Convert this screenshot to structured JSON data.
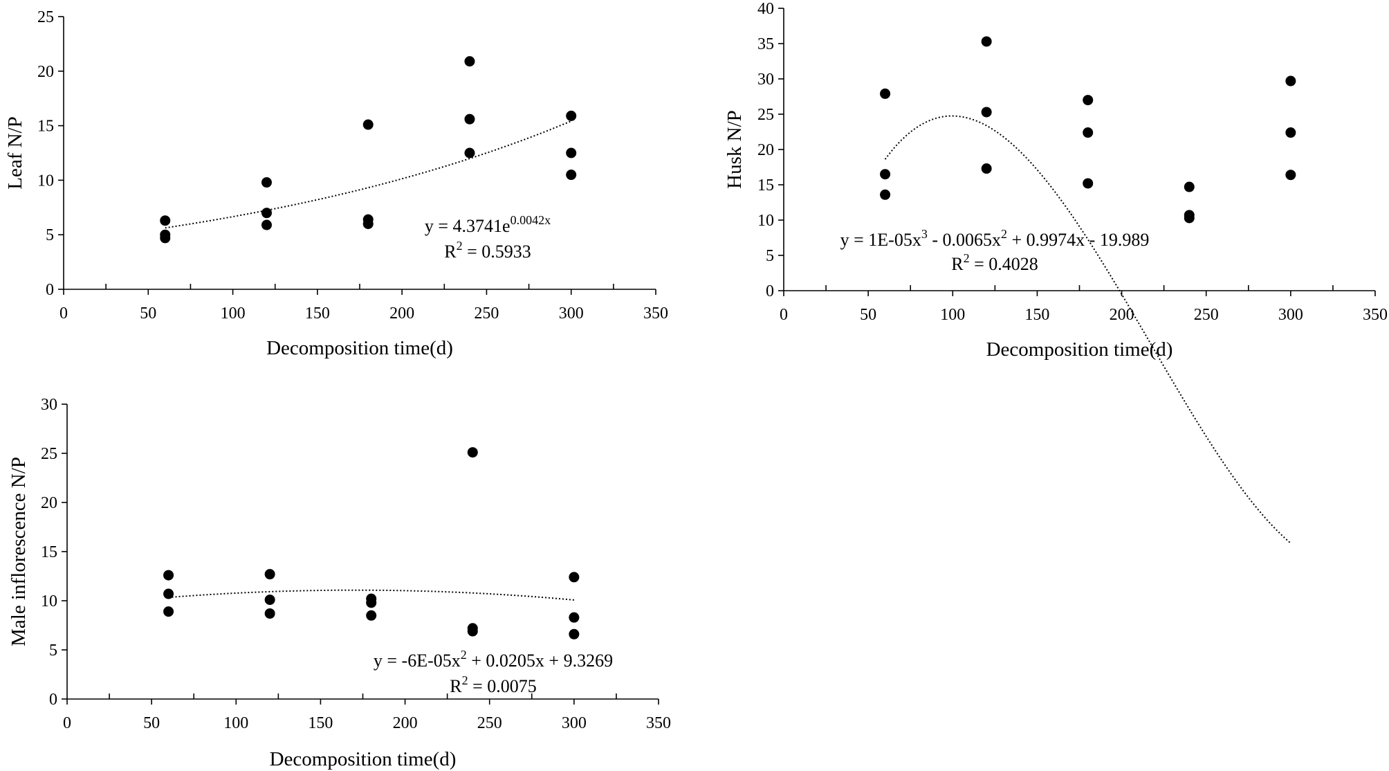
{
  "chart_data": [
    {
      "id": "leaf",
      "type": "scatter",
      "title": "",
      "xlabel": "Decomposition time(d)",
      "ylabel": "Leaf  N/P",
      "xlim": [
        0,
        350
      ],
      "ylim": [
        0,
        25
      ],
      "xticks": [
        0,
        50,
        100,
        150,
        200,
        250,
        300,
        350
      ],
      "yticks": [
        0,
        5,
        10,
        15,
        20,
        25
      ],
      "x_minor_step": 25,
      "grid": false,
      "series": [
        {
          "name": "Leaf N/P",
          "points": [
            [
              60,
              6.3
            ],
            [
              60,
              5.0
            ],
            [
              60,
              4.7
            ],
            [
              120,
              9.8
            ],
            [
              120,
              7.0
            ],
            [
              120,
              5.9
            ],
            [
              180,
              15.1
            ],
            [
              180,
              6.4
            ],
            [
              180,
              6.0
            ],
            [
              240,
              20.9
            ],
            [
              240,
              15.6
            ],
            [
              240,
              12.5
            ],
            [
              300,
              15.9
            ],
            [
              300,
              12.5
            ],
            [
              300,
              10.5
            ]
          ]
        }
      ],
      "trendline": {
        "kind": "exponential",
        "a": 4.3741,
        "b": 0.0042,
        "x_range": [
          60,
          300
        ]
      },
      "equation": {
        "prefix": "y = 4.3741e",
        "exponent": "0.0042x",
        "r2_prefix": "R",
        "r2_sup": "2",
        "r2_value": " = 0.5933"
      }
    },
    {
      "id": "husk",
      "type": "scatter",
      "title": "",
      "xlabel": "Decomposition time(d)",
      "ylabel": "Husk  N/P",
      "xlim": [
        0,
        350
      ],
      "ylim": [
        0,
        40
      ],
      "xticks": [
        0,
        50,
        100,
        150,
        200,
        250,
        300,
        350
      ],
      "yticks": [
        0,
        5,
        10,
        15,
        20,
        25,
        30,
        35,
        40
      ],
      "x_minor_step": 25,
      "grid": false,
      "series": [
        {
          "name": "Husk N/P",
          "points": [
            [
              60,
              27.9
            ],
            [
              60,
              16.5
            ],
            [
              60,
              13.6
            ],
            [
              120,
              35.3
            ],
            [
              120,
              25.3
            ],
            [
              120,
              17.3
            ],
            [
              180,
              27.0
            ],
            [
              180,
              22.4
            ],
            [
              180,
              15.2
            ],
            [
              240,
              14.7
            ],
            [
              240,
              10.7
            ],
            [
              240,
              10.3
            ],
            [
              300,
              29.7
            ],
            [
              300,
              22.4
            ],
            [
              300,
              16.4
            ]
          ]
        }
      ],
      "trendline": {
        "kind": "polynomial",
        "coefficients": [
          -19.989,
          0.9974,
          -0.0065,
          1e-05
        ],
        "x_range": [
          60,
          300
        ]
      },
      "equation": {
        "parts": [
          {
            "t": "y = 1E-05x"
          },
          {
            "t": "3",
            "sup": true
          },
          {
            "t": " - 0.0065x"
          },
          {
            "t": "2",
            "sup": true
          },
          {
            "t": " + 0.9974x - 19.989"
          }
        ],
        "r2_prefix": "R",
        "r2_sup": "2",
        "r2_value": " = 0.4028"
      }
    },
    {
      "id": "male",
      "type": "scatter",
      "title": "",
      "xlabel": "Decomposition time(d)",
      "ylabel": "Male inflorescence  N/P",
      "xlim": [
        0,
        350
      ],
      "ylim": [
        0,
        30
      ],
      "xticks": [
        0,
        50,
        100,
        150,
        200,
        250,
        300,
        350
      ],
      "yticks": [
        0,
        5,
        10,
        15,
        20,
        25,
        30
      ],
      "x_minor_step": 25,
      "grid": false,
      "series": [
        {
          "name": "Male inflorescence N/P",
          "points": [
            [
              60,
              12.6
            ],
            [
              60,
              10.7
            ],
            [
              60,
              8.9
            ],
            [
              120,
              12.7
            ],
            [
              120,
              10.1
            ],
            [
              120,
              8.7
            ],
            [
              180,
              10.2
            ],
            [
              180,
              9.8
            ],
            [
              180,
              8.5
            ],
            [
              240,
              25.1
            ],
            [
              240,
              7.2
            ],
            [
              240,
              6.9
            ],
            [
              300,
              12.4
            ],
            [
              300,
              8.3
            ],
            [
              300,
              6.6
            ]
          ]
        }
      ],
      "trendline": {
        "kind": "polynomial",
        "coefficients": [
          9.3269,
          0.0205,
          -6e-05
        ],
        "x_range": [
          60,
          300
        ]
      },
      "equation": {
        "parts": [
          {
            "t": "y = -6E-05x"
          },
          {
            "t": "2",
            "sup": true
          },
          {
            "t": " + 0.0205x + 9.3269"
          }
        ],
        "r2_prefix": "R",
        "r2_sup": "2",
        "r2_value": " = 0.0075"
      }
    }
  ]
}
